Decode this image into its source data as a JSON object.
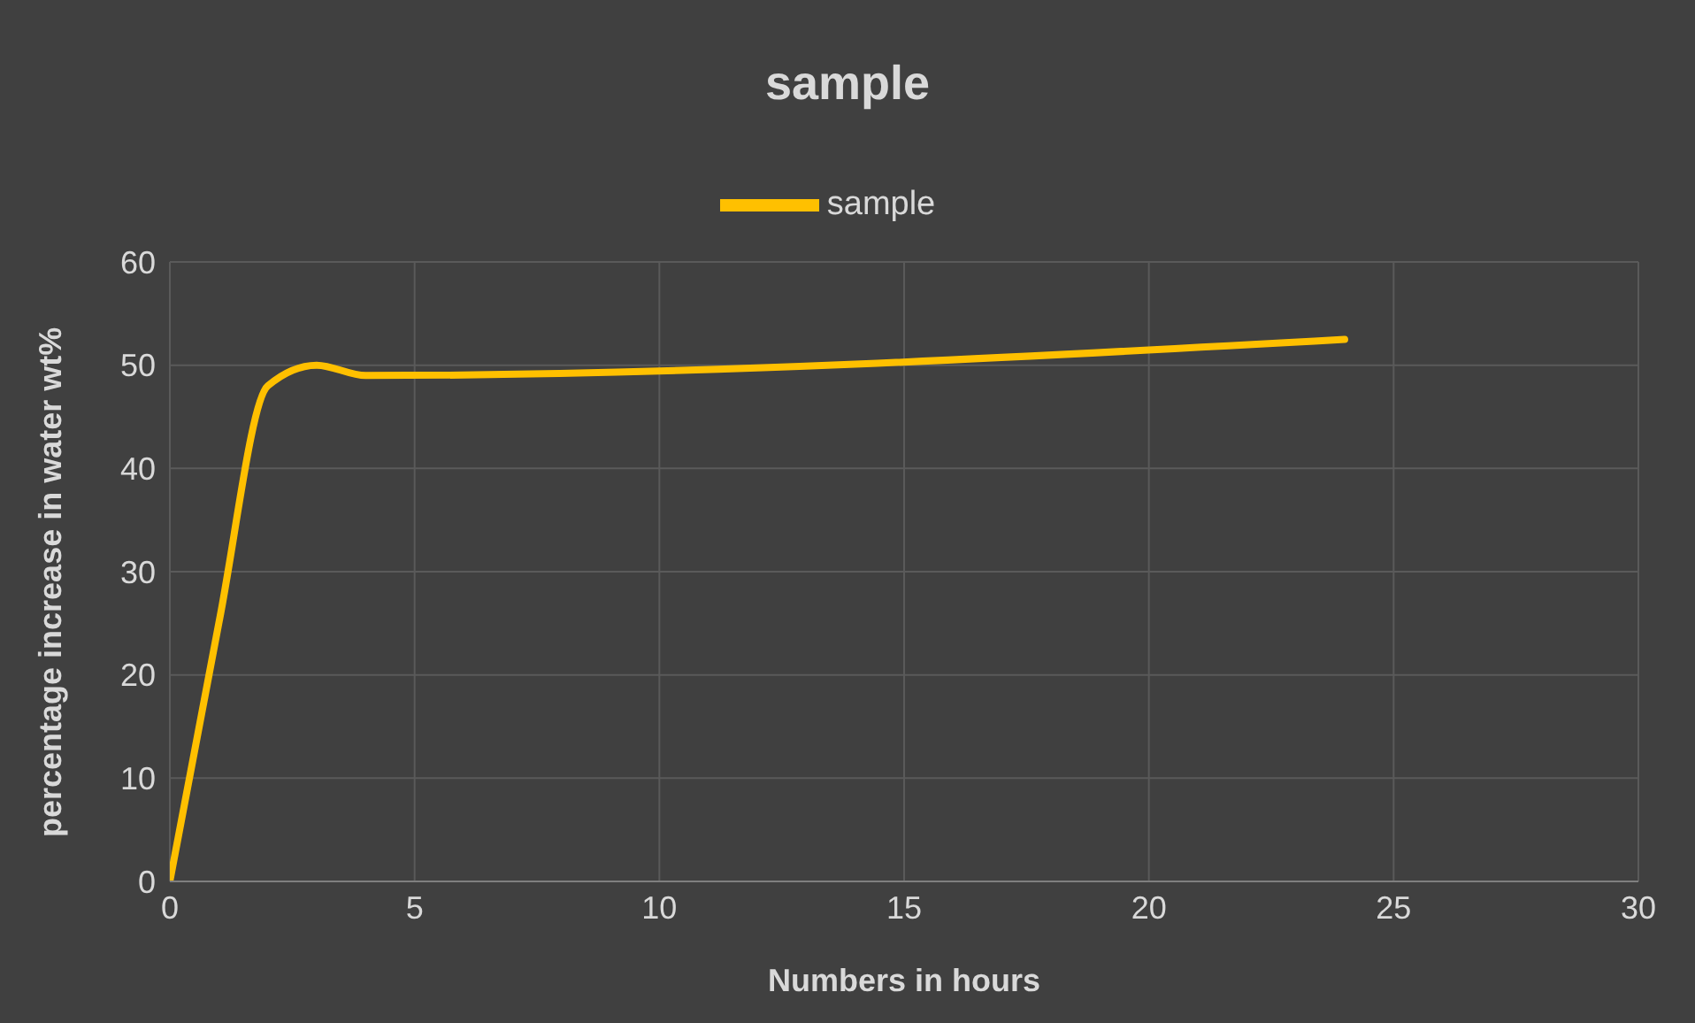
{
  "chart_data": {
    "type": "line",
    "title": "sample",
    "xlabel": "Numbers in hours",
    "ylabel": "percentage increase in water wt%",
    "x": [
      0,
      1,
      2,
      3,
      4,
      24
    ],
    "series": [
      {
        "name": "sample",
        "color": "#ffc000",
        "values": [
          0,
          25,
          48,
          50,
          49,
          52.5
        ]
      }
    ],
    "xlim": [
      0,
      30
    ],
    "xticks": [
      0,
      5,
      10,
      15,
      20,
      25,
      30
    ],
    "ylim": [
      0,
      60
    ],
    "yticks": [
      0,
      10,
      20,
      30,
      40,
      50,
      60
    ],
    "grid": true,
    "legend": "top",
    "marker": "none",
    "line_style": "solid"
  }
}
